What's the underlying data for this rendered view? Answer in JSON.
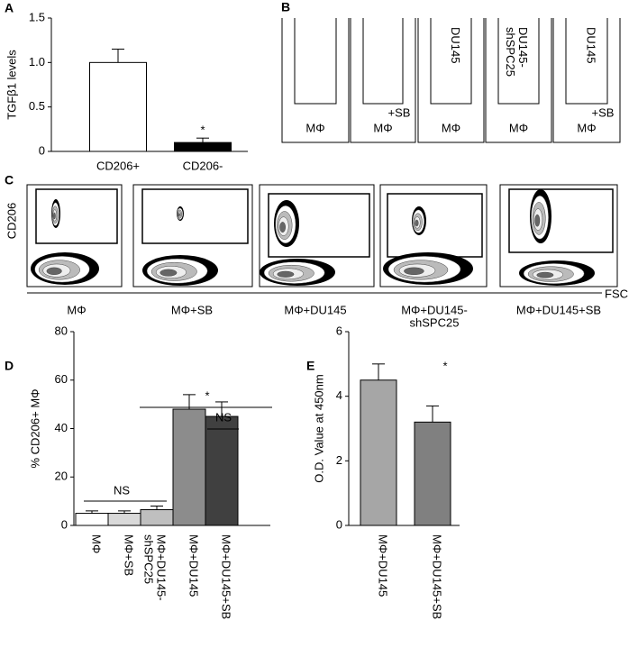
{
  "panel_labels": [
    "A",
    "B",
    "C",
    "D",
    "E"
  ],
  "chart_data": [
    {
      "type": "bar",
      "ylabel": "TGFβ1 levels",
      "categories": [
        [
          "CD206+"
        ],
        [
          "CD206-"
        ]
      ],
      "values": [
        1,
        0.1
      ],
      "errors": [
        0.15,
        0.05
      ],
      "colors": [
        "#ffffff",
        "#000000"
      ],
      "ylim": [
        0,
        1.5
      ],
      "yticks": [
        0,
        0.5,
        {
          "value": 1,
          "label": "1.0"
        },
        1.5
      ],
      "annotations": [
        "*"
      ]
    },
    {
      "type": "bar",
      "ylabel": "% CD206+ MΦ",
      "categories": [
        [
          "MΦ"
        ],
        [
          "MΦ+SB"
        ],
        [
          "MΦ+DU145-",
          "shSPC25"
        ],
        [
          "MΦ+DU145"
        ],
        [
          "MΦ+DU145+SB"
        ]
      ],
      "values": [
        5,
        5,
        6.5,
        48,
        45
      ],
      "errors": [
        1,
        1,
        1.5,
        6,
        6
      ],
      "colors": [
        "#ffffff",
        "#d9d9d9",
        "#bfbfbf",
        "#8c8c8c",
        "#404040"
      ],
      "ylim": [
        0,
        80
      ],
      "yticks": [
        0,
        20,
        40,
        60,
        80
      ],
      "annotations": [
        "NS",
        "*",
        "NS"
      ]
    },
    {
      "type": "bar",
      "ylabel": "O.D. Value at 450nm",
      "categories": [
        [
          "MΦ+DU145"
        ],
        [
          "MΦ+DU145+SB"
        ]
      ],
      "values": [
        4.5,
        3.2
      ],
      "errors": [
        0.5,
        0.5
      ],
      "colors": [
        "#a6a6a6",
        "#808080"
      ],
      "ylim": [
        0,
        6
      ],
      "yticks": [
        0,
        2,
        4,
        6
      ],
      "annotations": [
        "*"
      ]
    }
  ],
  "panel_b": {
    "wells": [
      {
        "top": [],
        "bottom": [
          "MΦ"
        ]
      },
      {
        "top": [],
        "bottom": [
          "+SB",
          "MΦ"
        ]
      },
      {
        "top": [
          "DU145"
        ],
        "bottom": [
          "MΦ"
        ]
      },
      {
        "top": [
          "DU145-",
          "shSPC25"
        ],
        "bottom": [
          "MΦ"
        ]
      },
      {
        "top": [
          "DU145"
        ],
        "bottom": [
          "+SB",
          "MΦ"
        ]
      }
    ]
  },
  "panel_c": {
    "ylabel": "CD206",
    "xlabel": "FSC",
    "samples": [
      [
        "MΦ"
      ],
      [
        "MΦ+SB"
      ],
      [
        "MΦ+DU145"
      ],
      [
        "MΦ+DU145-",
        "shSPC25"
      ],
      [
        "MΦ+DU145+SB"
      ]
    ]
  }
}
